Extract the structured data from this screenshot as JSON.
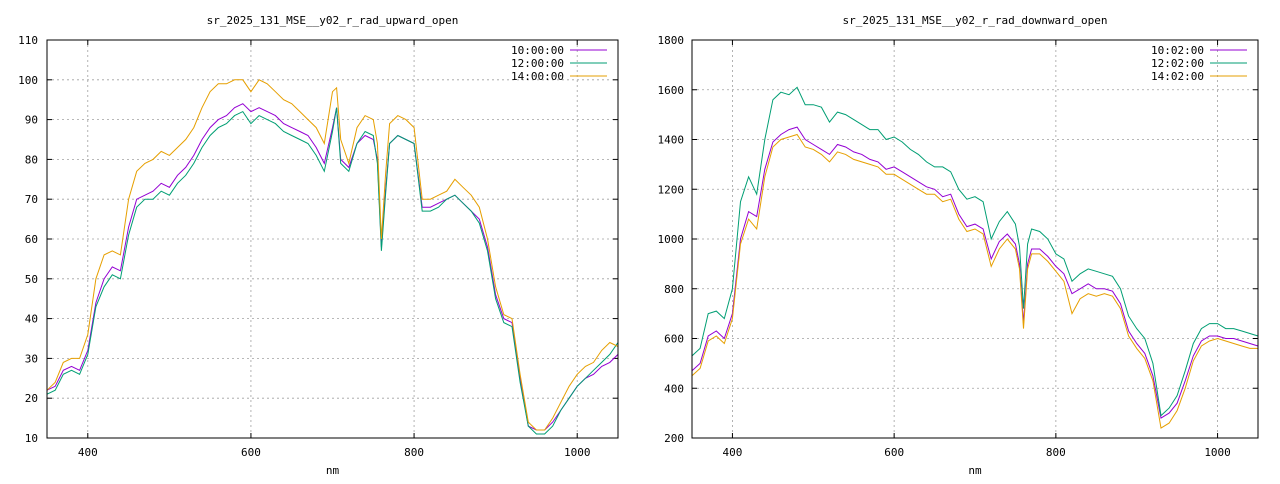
{
  "colors": {
    "s1": "#9400d3",
    "s2": "#009e73",
    "s3": "#e69f00"
  },
  "chart_data": [
    {
      "type": "line",
      "title": "sr_2025_131_MSE__y02_r_rad_upward_open",
      "xlabel": "nm",
      "ylabel": "",
      "xlim": [
        350,
        1050
      ],
      "ylim": [
        10,
        110
      ],
      "xticks": [
        400,
        600,
        800,
        1000
      ],
      "yticks": [
        10,
        20,
        30,
        40,
        50,
        60,
        70,
        80,
        90,
        100,
        110
      ],
      "grid": true,
      "legend_position": "top-right",
      "series": [
        {
          "name": "10:00:00",
          "x": [
            350,
            360,
            370,
            380,
            390,
            400,
            410,
            420,
            430,
            440,
            450,
            460,
            470,
            480,
            490,
            500,
            510,
            520,
            530,
            540,
            550,
            560,
            570,
            580,
            590,
            600,
            610,
            620,
            630,
            640,
            650,
            660,
            670,
            680,
            690,
            700,
            705,
            710,
            720,
            730,
            740,
            750,
            755,
            760,
            765,
            770,
            780,
            790,
            800,
            810,
            820,
            830,
            840,
            850,
            860,
            870,
            880,
            890,
            900,
            910,
            920,
            930,
            940,
            950,
            960,
            970,
            980,
            990,
            1000,
            1010,
            1020,
            1030,
            1040,
            1050
          ],
          "y": [
            22,
            23,
            27,
            28,
            27,
            32,
            44,
            50,
            53,
            52,
            63,
            70,
            71,
            72,
            74,
            73,
            76,
            78,
            81,
            85,
            88,
            90,
            91,
            93,
            94,
            92,
            93,
            92,
            91,
            89,
            88,
            87,
            86,
            83,
            79,
            88,
            93,
            80,
            78,
            84,
            86,
            85,
            80,
            58,
            72,
            84,
            86,
            85,
            84,
            68,
            68,
            69,
            70,
            71,
            69,
            67,
            65,
            58,
            46,
            40,
            39,
            25,
            13,
            12,
            12,
            14,
            17,
            20,
            23,
            25,
            26,
            28,
            29,
            31
          ]
        },
        {
          "name": "12:00:00",
          "x": [
            350,
            360,
            370,
            380,
            390,
            400,
            410,
            420,
            430,
            440,
            450,
            460,
            470,
            480,
            490,
            500,
            510,
            520,
            530,
            540,
            550,
            560,
            570,
            580,
            590,
            600,
            610,
            620,
            630,
            640,
            650,
            660,
            670,
            680,
            690,
            700,
            705,
            710,
            720,
            730,
            740,
            750,
            755,
            760,
            765,
            770,
            780,
            790,
            800,
            810,
            820,
            830,
            840,
            850,
            860,
            870,
            880,
            890,
            900,
            910,
            920,
            930,
            940,
            950,
            960,
            970,
            980,
            990,
            1000,
            1010,
            1020,
            1030,
            1040,
            1050
          ],
          "y": [
            21,
            22,
            26,
            27,
            26,
            31,
            43,
            48,
            51,
            50,
            61,
            68,
            70,
            70,
            72,
            71,
            74,
            76,
            79,
            83,
            86,
            88,
            89,
            91,
            92,
            89,
            91,
            90,
            89,
            87,
            86,
            85,
            84,
            81,
            77,
            87,
            93,
            79,
            77,
            84,
            87,
            86,
            79,
            57,
            71,
            84,
            86,
            85,
            84,
            67,
            67,
            68,
            70,
            71,
            69,
            67,
            64,
            57,
            45,
            39,
            38,
            24,
            13,
            11,
            11,
            13,
            17,
            20,
            23,
            25,
            27,
            29,
            31,
            34
          ]
        },
        {
          "name": "14:00:00",
          "x": [
            350,
            360,
            370,
            380,
            390,
            400,
            410,
            420,
            430,
            440,
            450,
            460,
            470,
            480,
            490,
            500,
            510,
            520,
            530,
            540,
            550,
            560,
            570,
            580,
            590,
            600,
            610,
            620,
            630,
            640,
            650,
            660,
            670,
            680,
            690,
            700,
            705,
            710,
            720,
            730,
            740,
            750,
            755,
            760,
            765,
            770,
            780,
            790,
            800,
            810,
            820,
            830,
            840,
            850,
            860,
            870,
            880,
            890,
            900,
            910,
            920,
            930,
            940,
            950,
            960,
            970,
            980,
            990,
            1000,
            1010,
            1020,
            1030,
            1040,
            1050
          ],
          "y": [
            22,
            24,
            29,
            30,
            30,
            36,
            50,
            56,
            57,
            56,
            70,
            77,
            79,
            80,
            82,
            81,
            83,
            85,
            88,
            93,
            97,
            99,
            99,
            100,
            100,
            97,
            100,
            99,
            97,
            95,
            94,
            92,
            90,
            88,
            84,
            97,
            98,
            85,
            79,
            88,
            91,
            90,
            84,
            60,
            76,
            89,
            91,
            90,
            88,
            70,
            70,
            71,
            72,
            75,
            73,
            71,
            68,
            60,
            48,
            41,
            40,
            26,
            14,
            12,
            12,
            15,
            19,
            23,
            26,
            28,
            29,
            32,
            34,
            33
          ]
        }
      ]
    },
    {
      "type": "line",
      "title": "sr_2025_131_MSE__y02_r_rad_downward_open",
      "xlabel": "nm",
      "ylabel": "",
      "xlim": [
        350,
        1050
      ],
      "ylim": [
        200,
        1800
      ],
      "xticks": [
        400,
        600,
        800,
        1000
      ],
      "yticks": [
        200,
        400,
        600,
        800,
        1000,
        1200,
        1400,
        1600,
        1800
      ],
      "grid": true,
      "legend_position": "top-right",
      "series": [
        {
          "name": "10:02:00",
          "x": [
            350,
            360,
            370,
            380,
            390,
            400,
            410,
            420,
            430,
            440,
            450,
            460,
            470,
            480,
            490,
            500,
            510,
            520,
            530,
            540,
            550,
            560,
            570,
            580,
            590,
            600,
            610,
            620,
            630,
            640,
            650,
            660,
            670,
            680,
            690,
            700,
            710,
            720,
            730,
            740,
            750,
            755,
            760,
            765,
            770,
            780,
            790,
            800,
            810,
            820,
            830,
            840,
            850,
            860,
            870,
            880,
            890,
            900,
            910,
            920,
            930,
            940,
            950,
            960,
            970,
            980,
            990,
            1000,
            1010,
            1020,
            1030,
            1040,
            1050
          ],
          "y": [
            470,
            500,
            610,
            630,
            600,
            700,
            1000,
            1110,
            1090,
            1280,
            1390,
            1420,
            1440,
            1450,
            1400,
            1380,
            1360,
            1340,
            1380,
            1370,
            1350,
            1340,
            1320,
            1310,
            1280,
            1290,
            1270,
            1250,
            1230,
            1210,
            1200,
            1170,
            1180,
            1100,
            1050,
            1060,
            1040,
            920,
            990,
            1020,
            980,
            900,
            660,
            900,
            960,
            960,
            930,
            890,
            860,
            780,
            800,
            820,
            800,
            800,
            790,
            740,
            630,
            580,
            540,
            450,
            280,
            300,
            340,
            430,
            530,
            590,
            610,
            610,
            600,
            600,
            590,
            580,
            570
          ]
        },
        {
          "name": "12:02:00",
          "x": [
            350,
            360,
            370,
            380,
            390,
            400,
            410,
            420,
            430,
            440,
            450,
            460,
            470,
            480,
            490,
            500,
            510,
            520,
            530,
            540,
            550,
            560,
            570,
            580,
            590,
            600,
            610,
            620,
            630,
            640,
            650,
            660,
            670,
            680,
            690,
            700,
            710,
            720,
            730,
            740,
            750,
            755,
            760,
            765,
            770,
            780,
            790,
            800,
            810,
            820,
            830,
            840,
            850,
            860,
            870,
            880,
            890,
            900,
            910,
            920,
            930,
            940,
            950,
            960,
            970,
            980,
            990,
            1000,
            1010,
            1020,
            1030,
            1040,
            1050
          ],
          "y": [
            530,
            560,
            700,
            710,
            680,
            800,
            1150,
            1250,
            1180,
            1400,
            1560,
            1590,
            1580,
            1610,
            1540,
            1540,
            1530,
            1470,
            1510,
            1500,
            1480,
            1460,
            1440,
            1440,
            1400,
            1410,
            1390,
            1360,
            1340,
            1310,
            1290,
            1290,
            1270,
            1200,
            1160,
            1170,
            1150,
            1000,
            1070,
            1110,
            1060,
            970,
            720,
            980,
            1040,
            1030,
            1000,
            940,
            920,
            830,
            860,
            880,
            870,
            860,
            850,
            800,
            690,
            640,
            600,
            500,
            290,
            320,
            370,
            470,
            580,
            640,
            660,
            660,
            640,
            640,
            630,
            620,
            610
          ]
        },
        {
          "name": "14:02:00",
          "x": [
            350,
            360,
            370,
            380,
            390,
            400,
            410,
            420,
            430,
            440,
            450,
            460,
            470,
            480,
            490,
            500,
            510,
            520,
            530,
            540,
            550,
            560,
            570,
            580,
            590,
            600,
            610,
            620,
            630,
            640,
            650,
            660,
            670,
            680,
            690,
            700,
            710,
            720,
            730,
            740,
            750,
            755,
            760,
            765,
            770,
            780,
            790,
            800,
            810,
            820,
            830,
            840,
            850,
            860,
            870,
            880,
            890,
            900,
            910,
            920,
            930,
            940,
            950,
            960,
            970,
            980,
            990,
            1000,
            1010,
            1020,
            1030,
            1040,
            1050
          ],
          "y": [
            450,
            480,
            590,
            610,
            580,
            680,
            980,
            1080,
            1040,
            1250,
            1370,
            1400,
            1410,
            1420,
            1370,
            1360,
            1340,
            1310,
            1350,
            1340,
            1320,
            1310,
            1300,
            1290,
            1260,
            1260,
            1240,
            1220,
            1200,
            1180,
            1180,
            1150,
            1160,
            1080,
            1030,
            1040,
            1020,
            890,
            960,
            1000,
            960,
            880,
            640,
            880,
            940,
            940,
            910,
            870,
            830,
            700,
            760,
            780,
            770,
            780,
            770,
            720,
            610,
            560,
            520,
            430,
            240,
            260,
            310,
            400,
            510,
            570,
            590,
            600,
            590,
            580,
            570,
            560,
            560
          ]
        }
      ]
    }
  ]
}
